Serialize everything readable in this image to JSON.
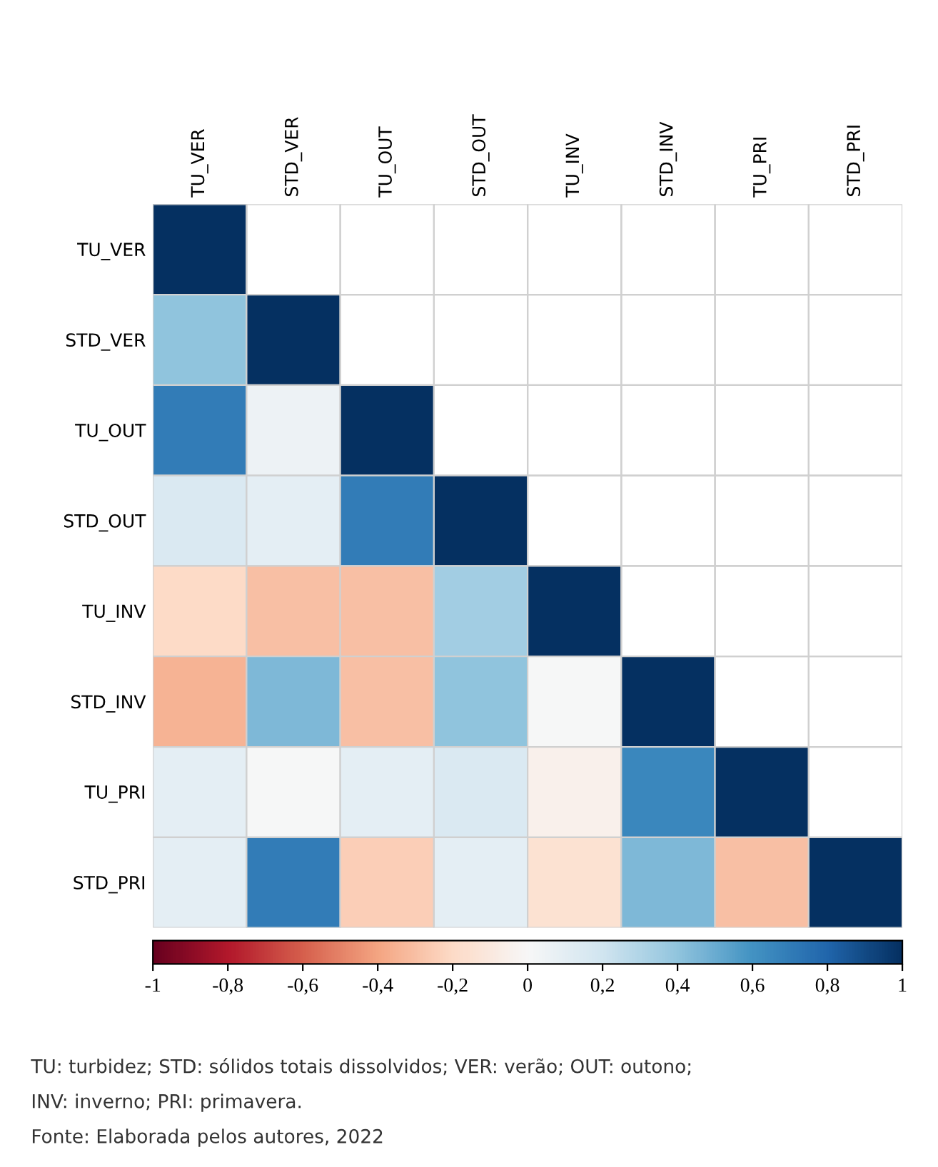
{
  "chart_data": {
    "type": "heatmap",
    "categories": [
      "TU_VER",
      "STD_VER",
      "TU_OUT",
      "STD_OUT",
      "TU_INV",
      "STD_INV",
      "TU_PRI",
      "STD_PRI"
    ],
    "y_categories": [
      "TU_VER",
      "STD_VER",
      "TU_OUT",
      "STD_OUT",
      "TU_INV",
      "STD_INV",
      "TU_PRI",
      "STD_PRI"
    ],
    "cells": [
      [
        1,
        null,
        null,
        null,
        null,
        null,
        null,
        null
      ],
      [
        0.4,
        1,
        null,
        null,
        null,
        null,
        null,
        null
      ],
      [
        0.7,
        0.05,
        1,
        null,
        null,
        null,
        null,
        null
      ],
      [
        0.15,
        0.1,
        0.7,
        1,
        null,
        null,
        null,
        null
      ],
      [
        -0.2,
        -0.3,
        -0.3,
        0.35,
        1,
        null,
        null,
        null
      ],
      [
        -0.35,
        0.45,
        -0.3,
        0.4,
        0.0,
        1,
        null,
        null
      ],
      [
        0.1,
        0.0,
        0.1,
        0.15,
        -0.05,
        0.65,
        1,
        null
      ],
      [
        0.1,
        0.7,
        -0.25,
        0.1,
        -0.15,
        0.45,
        -0.3,
        1
      ]
    ],
    "clim": [
      -1,
      1
    ],
    "cticks": [
      {
        "value": -1,
        "label": "-1"
      },
      {
        "value": -0.8,
        "label": "-0,8"
      },
      {
        "value": -0.6,
        "label": "-0,6"
      },
      {
        "value": -0.4,
        "label": "-0,4"
      },
      {
        "value": -0.2,
        "label": "-0,2"
      },
      {
        "value": 0,
        "label": "0"
      },
      {
        "value": 0.2,
        "label": "0,2"
      },
      {
        "value": 0.4,
        "label": "0,4"
      },
      {
        "value": 0.6,
        "label": "0,6"
      },
      {
        "value": 0.8,
        "label": "0,8"
      },
      {
        "value": 1,
        "label": "1"
      }
    ],
    "annotations": [
      "TU: turbidez; STD: sólidos totais dissolvidos; VER: verão; OUT: outono;",
      "INV: inverno; PRI: primavera.",
      "Fonte: Elaborada pelos autores, 2022"
    ]
  }
}
